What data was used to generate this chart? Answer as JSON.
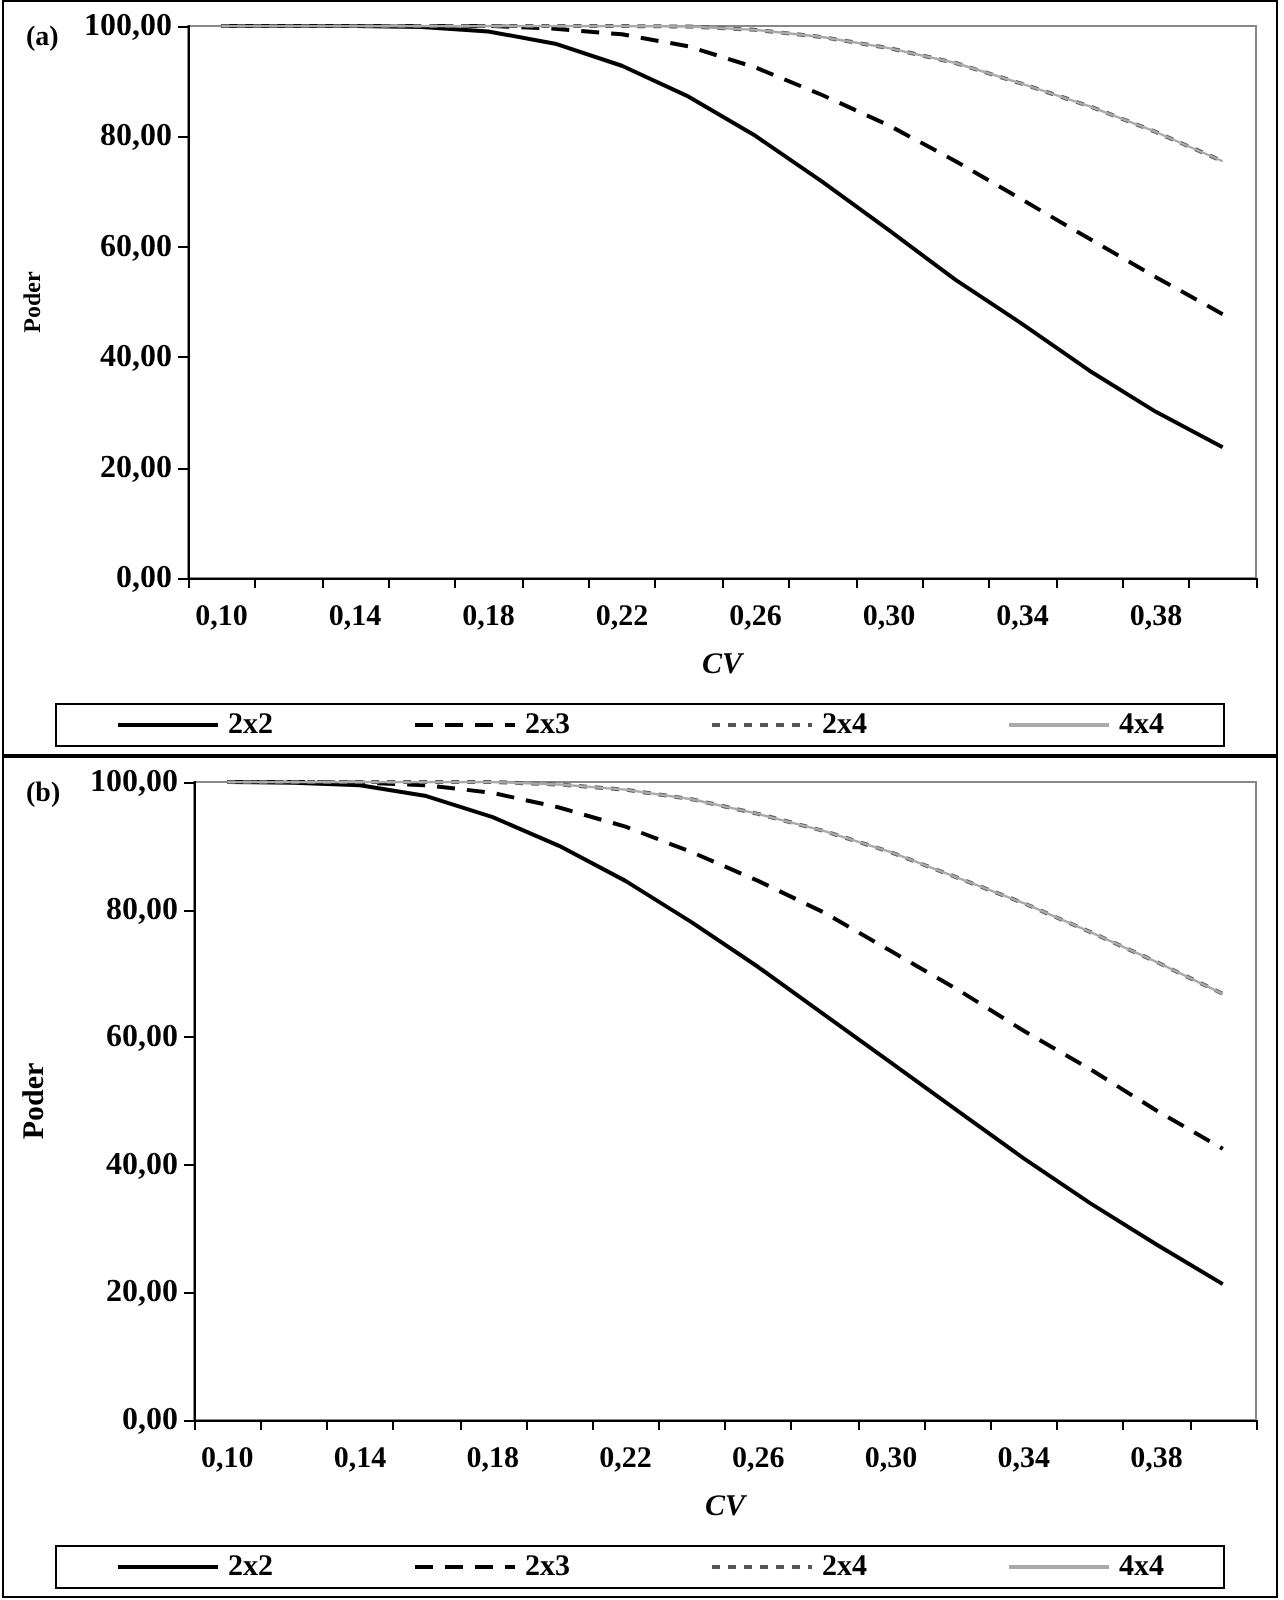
{
  "chart_data": [
    {
      "type": "line",
      "title": "(a)",
      "xlabel": "CV",
      "ylabel": "Poder",
      "categories": [
        "0,10",
        null,
        "0,14",
        null,
        "0,18",
        null,
        "0,22",
        null,
        "0,26",
        null,
        "0,30",
        null,
        "0,34",
        null,
        "0,38",
        null
      ],
      "ylim": [
        0,
        100
      ],
      "yticks": [
        {
          "value": 0,
          "label": "0,00"
        },
        {
          "value": 20,
          "label": "20,00"
        },
        {
          "value": 40,
          "label": "40,00"
        },
        {
          "value": 60,
          "label": "60,00"
        },
        {
          "value": 80,
          "label": "80,00"
        },
        {
          "value": 100,
          "label": "100,00"
        }
      ],
      "legend": "bottom",
      "marker": "none",
      "series": [
        {
          "name": "2x2",
          "color": "#000000",
          "line_style": "solid",
          "values": [
            100,
            100,
            100,
            99.8,
            99,
            96.8,
            92.8,
            87.2,
            80.1,
            71.8,
            63,
            54,
            46,
            37.6,
            30.1,
            23.7
          ]
        },
        {
          "name": "2x3",
          "color": "#000000",
          "line_style": "dashed",
          "values": [
            100,
            100,
            100,
            100,
            100,
            99.5,
            98.5,
            96.3,
            92.5,
            87.5,
            82,
            75.5,
            68.5,
            61.5,
            54.5,
            47.8
          ]
        },
        {
          "name": "2x4",
          "color": "#555555",
          "line_style": "dotted",
          "values": [
            100,
            100,
            100,
            100,
            100,
            100,
            100,
            99.9,
            99.3,
            98,
            96,
            93.3,
            89.5,
            85.5,
            80.8,
            75.5
          ]
        },
        {
          "name": "4x4",
          "color": "#aaaaaa",
          "line_style": "solid",
          "values": [
            100,
            100,
            100,
            100,
            100,
            100,
            100,
            99.9,
            99.3,
            98,
            96,
            93.3,
            89.5,
            85.5,
            80.8,
            75.5
          ]
        }
      ]
    },
    {
      "type": "line",
      "title": "(b)",
      "xlabel": "CV",
      "ylabel": "Poder",
      "categories": [
        "0,10",
        null,
        "0,14",
        null,
        "0,18",
        null,
        "0,22",
        null,
        "0,26",
        null,
        "0,30",
        null,
        "0,34",
        null,
        "0,38",
        null
      ],
      "ylim": [
        0,
        100
      ],
      "yticks": [
        {
          "value": 0,
          "label": "0,00"
        },
        {
          "value": 20,
          "label": "20,00"
        },
        {
          "value": 40,
          "label": "40,00"
        },
        {
          "value": 60,
          "label": "60,00"
        },
        {
          "value": 80,
          "label": "80,00"
        },
        {
          "value": 100,
          "label": "100,00"
        }
      ],
      "legend": "bottom",
      "marker": "none",
      "series": [
        {
          "name": "2x2",
          "color": "#000000",
          "line_style": "solid",
          "values": [
            100,
            99.9,
            99.5,
            97.8,
            94.5,
            90,
            84.5,
            78,
            71,
            63.5,
            56,
            48.5,
            41,
            34,
            27.5,
            21.3
          ]
        },
        {
          "name": "2x3",
          "color": "#000000",
          "line_style": "dashed",
          "values": [
            100,
            100,
            99.9,
            99.5,
            98.3,
            96,
            93,
            89,
            84.5,
            79.5,
            73.5,
            67.5,
            61,
            55,
            48.5,
            42.5
          ]
        },
        {
          "name": "2x4",
          "color": "#555555",
          "line_style": "dotted",
          "values": [
            100,
            100,
            100,
            100,
            100,
            99.6,
            98.8,
            97.3,
            95,
            92.3,
            89,
            85,
            81,
            76.5,
            71.8,
            66.8
          ]
        },
        {
          "name": "4x4",
          "color": "#aaaaaa",
          "line_style": "solid",
          "values": [
            100,
            100,
            100,
            100,
            100,
            99.6,
            98.8,
            97.3,
            95,
            92.3,
            89,
            85,
            81,
            76.5,
            71.8,
            66.8
          ]
        }
      ]
    }
  ]
}
